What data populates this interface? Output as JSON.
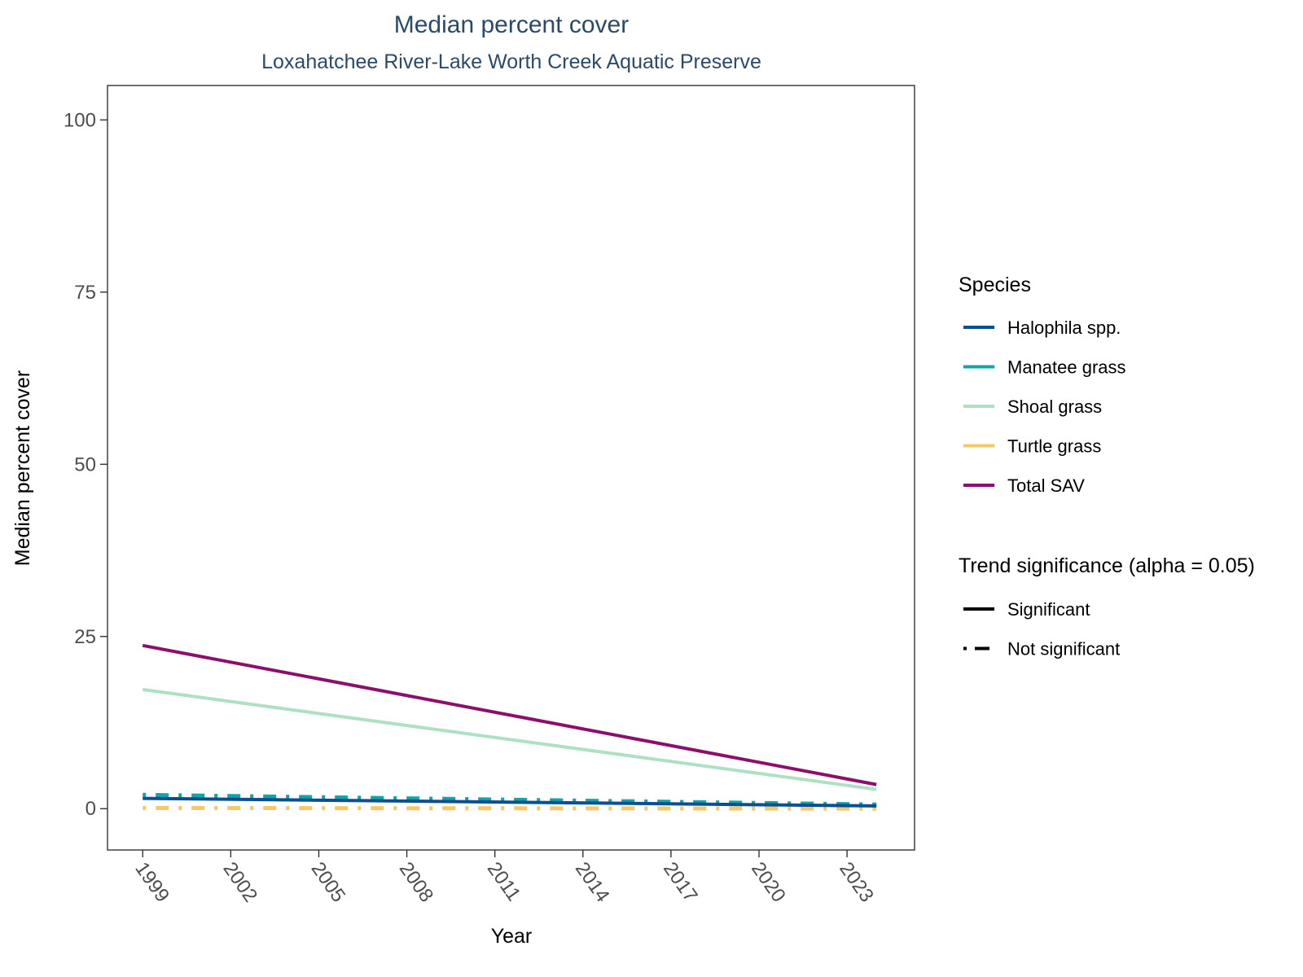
{
  "chart_data": {
    "type": "line",
    "title": "Median percent cover",
    "subtitle": "Loxahatchee River-Lake Worth Creek Aquatic Preserve",
    "xlabel": "Year",
    "ylabel": "Median percent cover",
    "xlim": [
      1997.8,
      2025.3
    ],
    "ylim": [
      -6,
      105
    ],
    "x_ticks": [
      1999,
      2002,
      2005,
      2008,
      2011,
      2014,
      2017,
      2020,
      2023
    ],
    "y_ticks": [
      0,
      25,
      50,
      75,
      100
    ],
    "grid": false,
    "legend_position": "right",
    "series": [
      {
        "name": "Halophila spp.",
        "color": "#0a4f8f",
        "significance": "Significant",
        "x": [
          1999,
          2024
        ],
        "y": [
          1.5,
          0.4
        ]
      },
      {
        "name": "Manatee grass",
        "color": "#12a4a6",
        "significance": "Not significant",
        "x": [
          1999,
          2024
        ],
        "y": [
          2.0,
          0.6
        ]
      },
      {
        "name": "Shoal grass",
        "color": "#ade1c2",
        "significance": "Significant",
        "x": [
          1999,
          2024
        ],
        "y": [
          17.3,
          2.8
        ]
      },
      {
        "name": "Turtle grass",
        "color": "#f5c96a",
        "significance": "Not significant",
        "x": [
          1999,
          2024
        ],
        "y": [
          0.1,
          0.0
        ]
      },
      {
        "name": "Total SAV",
        "color": "#8b0f6c",
        "significance": "Significant",
        "x": [
          1999,
          2024
        ],
        "y": [
          23.7,
          3.5
        ]
      }
    ],
    "legend": {
      "species_title": "Species",
      "significance_title": "Trend significance (alpha = 0.05)",
      "significance_items": [
        {
          "label": "Significant",
          "style": "solid"
        },
        {
          "label": "Not significant",
          "style": "dotdash"
        }
      ]
    }
  }
}
